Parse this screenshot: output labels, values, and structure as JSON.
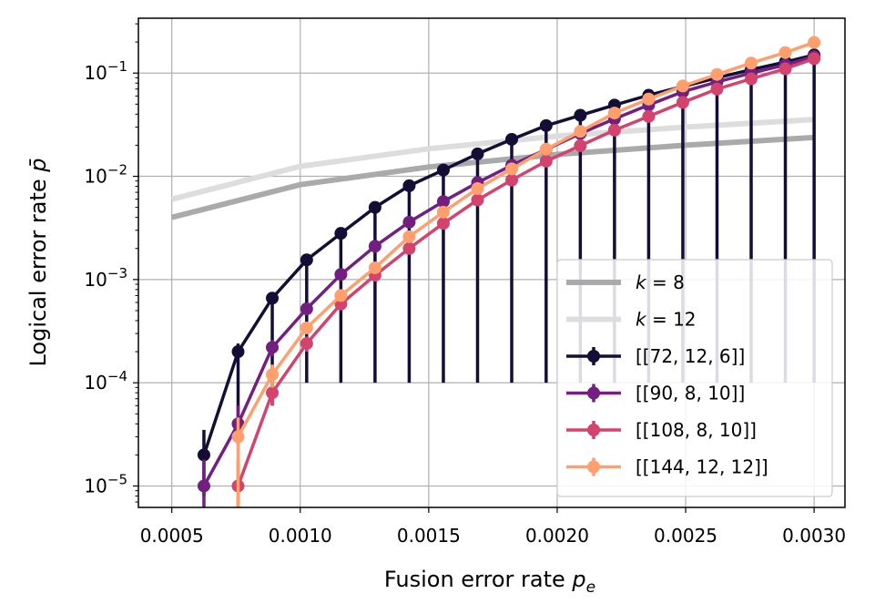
{
  "chart_data": {
    "type": "line",
    "xlabel": "Fusion error rate p_e",
    "ylabel": "Logical error rate p̄",
    "x_scale": "linear",
    "y_scale": "log",
    "xlim": [
      0.00037,
      0.00312
    ],
    "ylim": [
      6.2e-06,
      0.34
    ],
    "x_ticks": [
      "0.0005",
      "0.0010",
      "0.0015",
      "0.0020",
      "0.0025",
      "0.0030"
    ],
    "x_tick_values": [
      0.0005,
      0.001,
      0.0015,
      0.002,
      0.0025,
      0.003
    ],
    "y_tick_values": [
      1e-05,
      0.0001,
      0.001,
      0.01,
      0.1
    ],
    "y_tick_exponents": [
      "−5",
      "−4",
      "−3",
      "−2",
      "−1"
    ],
    "y_tick_base": "10",
    "grid": true,
    "legend_position": "lower-right",
    "bounds": [
      {
        "name": "k = 8",
        "label_italic": "k",
        "label_rest": " = 8",
        "color": "#aaaaaa",
        "x": [
          0.0005,
          0.001,
          0.0015,
          0.002,
          0.0025,
          0.003
        ],
        "y": [
          0.004,
          0.0083,
          0.0123,
          0.0163,
          0.02,
          0.0238
        ]
      },
      {
        "name": "k = 12",
        "label_italic": "k",
        "label_rest": " = 12",
        "color": "#dddddd",
        "x": [
          0.0005,
          0.001,
          0.0015,
          0.002,
          0.0025,
          0.003
        ],
        "y": [
          0.006,
          0.0125,
          0.0185,
          0.0245,
          0.03,
          0.0355
        ]
      }
    ],
    "series": [
      {
        "name": "[[72, 12, 6]]",
        "color": "#140e36",
        "x": [
          0.000625,
          0.000758,
          0.000891,
          0.001025,
          0.001158,
          0.001291,
          0.001424,
          0.001557,
          0.00169,
          0.001823,
          0.001957,
          0.00209,
          0.002223,
          0.002356,
          0.002489,
          0.002622,
          0.002755,
          0.002888,
          0.003
        ],
        "y": [
          2e-05,
          0.0002,
          0.00066,
          0.00155,
          0.0028,
          0.005,
          0.0081,
          0.0115,
          0.0165,
          0.0228,
          0.031,
          0.039,
          0.049,
          0.061,
          0.074,
          0.09,
          0.108,
          0.128,
          0.15
        ],
        "err_lo": [
          8e-06,
          4e-05,
          6e-05,
          0.0001,
          0.0001,
          0.0001,
          0.0001,
          0.0001,
          0.0001,
          0.0001,
          0.0001,
          0.0001,
          0.0001,
          0.0001,
          0.0001,
          0.0001,
          0.0001,
          0.0001,
          0.0001
        ],
        "err_hi": [
          3.5e-05,
          0.00024,
          0.00073,
          0.00165,
          0.0029,
          0.0051,
          0.0082,
          0.0116,
          0.0166,
          0.0229,
          0.0311,
          0.0391,
          0.0491,
          0.0611,
          0.0741,
          0.0901,
          0.1081,
          0.1281,
          0.1501
        ]
      },
      {
        "name": "[[90, 8, 10]]",
        "color": "#721f81",
        "x": [
          0.000625,
          0.000758,
          0.000891,
          0.001025,
          0.001158,
          0.001291,
          0.001424,
          0.001557,
          0.00169,
          0.001823,
          0.001957,
          0.00209,
          0.002223,
          0.002356,
          0.002489,
          0.002622,
          0.002755,
          0.002888,
          0.003
        ],
        "y": [
          1e-05,
          4e-05,
          0.00022,
          0.00052,
          0.00112,
          0.0021,
          0.0036,
          0.0057,
          0.0087,
          0.0128,
          0.0182,
          0.026,
          0.036,
          0.049,
          0.066,
          0.082,
          0.1,
          0.12,
          0.145
        ],
        "err_lo": [
          3e-06,
          2.5e-05,
          0.00018,
          0.00046,
          0.00105,
          0.002,
          0.0035,
          0.0056,
          0.0086,
          0.0127,
          0.0181,
          0.0259,
          0.0359,
          0.0489,
          0.0659,
          0.0819,
          0.0999,
          0.1199,
          0.1449
        ],
        "err_hi": [
          1.8e-05,
          6e-05,
          0.00026,
          0.00058,
          0.00119,
          0.0022,
          0.0037,
          0.0058,
          0.0088,
          0.0129,
          0.0183,
          0.0261,
          0.0361,
          0.0491,
          0.0661,
          0.0821,
          0.1001,
          0.1201,
          0.1451
        ]
      },
      {
        "name": "[[108, 8, 10]]",
        "color": "#d3436e",
        "x": [
          0.000758,
          0.000891,
          0.001025,
          0.001158,
          0.001291,
          0.001424,
          0.001557,
          0.00169,
          0.001823,
          0.001957,
          0.00209,
          0.002223,
          0.002356,
          0.002489,
          0.002622,
          0.002755,
          0.002888,
          0.003
        ],
        "y": [
          1e-05,
          8e-05,
          0.00024,
          0.00058,
          0.0011,
          0.002,
          0.0035,
          0.0059,
          0.0092,
          0.014,
          0.0198,
          0.028,
          0.038,
          0.052,
          0.07,
          0.088,
          0.11,
          0.138
        ],
        "err_lo": [
          3e-06,
          6e-05,
          0.0002,
          0.00053,
          0.00104,
          0.00193,
          0.00343,
          0.00583,
          0.0091,
          0.0139,
          0.0197,
          0.0279,
          0.0379,
          0.0519,
          0.0699,
          0.0879,
          0.1099,
          0.1379
        ],
        "err_hi": [
          1.8e-05,
          0.0001,
          0.00028,
          0.00063,
          0.00116,
          0.00207,
          0.00357,
          0.00597,
          0.0093,
          0.0141,
          0.0199,
          0.0281,
          0.0381,
          0.0521,
          0.0701,
          0.0881,
          0.1101,
          0.1381
        ]
      },
      {
        "name": "[[144, 12, 12]]",
        "color": "#fe9f6d",
        "x": [
          0.000758,
          0.000891,
          0.001025,
          0.001158,
          0.001291,
          0.001424,
          0.001557,
          0.00169,
          0.001823,
          0.001957,
          0.00209,
          0.002223,
          0.002356,
          0.002489,
          0.002622,
          0.002755,
          0.002888,
          0.003
        ],
        "y": [
          3e-05,
          0.00012,
          0.00034,
          0.0007,
          0.0013,
          0.0026,
          0.0045,
          0.0076,
          0.0118,
          0.0183,
          0.0272,
          0.041,
          0.056,
          0.075,
          0.097,
          0.125,
          0.158,
          0.198
        ],
        "err_lo": [
          6e-06,
          9e-05,
          0.0003,
          0.00065,
          0.00124,
          0.00253,
          0.00443,
          0.00753,
          0.0117,
          0.0182,
          0.0271,
          0.0409,
          0.0559,
          0.0749,
          0.0969,
          0.1249,
          0.1579,
          0.1979
        ],
        "err_hi": [
          4.6e-05,
          0.00015,
          0.00038,
          0.00075,
          0.00136,
          0.00267,
          0.00457,
          0.00767,
          0.0119,
          0.0184,
          0.0273,
          0.0411,
          0.0561,
          0.0751,
          0.0971,
          0.1251,
          0.1581,
          0.1981
        ]
      }
    ]
  }
}
